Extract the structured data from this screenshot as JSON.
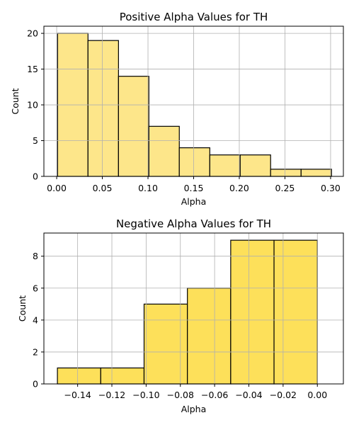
{
  "chart_data": [
    {
      "type": "bar",
      "title": "Positive Alpha Values for TH",
      "xlabel": "Alpha",
      "ylabel": "Count",
      "bar_color": "#fde68a",
      "edge_color": "#000000",
      "grid": true,
      "xlim": [
        -0.014,
        0.314
      ],
      "ylim": [
        0,
        21
      ],
      "xticks": [
        0.0,
        0.05,
        0.1,
        0.15,
        0.2,
        0.25,
        0.3
      ],
      "xtick_labels": [
        "0.00",
        "0.05",
        "0.10",
        "0.15",
        "0.20",
        "0.25",
        "0.30"
      ],
      "yticks": [
        0,
        5,
        10,
        15,
        20
      ],
      "ytick_labels": [
        "0",
        "5",
        "10",
        "15",
        "20"
      ],
      "bins": [
        {
          "x0": 0.001,
          "x1": 0.0343,
          "count": 20
        },
        {
          "x0": 0.0343,
          "x1": 0.0677,
          "count": 19
        },
        {
          "x0": 0.0677,
          "x1": 0.101,
          "count": 14
        },
        {
          "x0": 0.101,
          "x1": 0.1343,
          "count": 7
        },
        {
          "x0": 0.1343,
          "x1": 0.1677,
          "count": 4
        },
        {
          "x0": 0.1677,
          "x1": 0.201,
          "count": 3
        },
        {
          "x0": 0.201,
          "x1": 0.2343,
          "count": 3
        },
        {
          "x0": 0.2343,
          "x1": 0.2677,
          "count": 1
        },
        {
          "x0": 0.2677,
          "x1": 0.301,
          "count": 1
        }
      ]
    },
    {
      "type": "bar",
      "title": "Negative Alpha Values for TH",
      "xlabel": "Alpha",
      "ylabel": "Count",
      "bar_color": "#fde05a",
      "edge_color": "#000000",
      "grid": true,
      "xlim": [
        -0.1597,
        0.0152
      ],
      "ylim": [
        0,
        9.45
      ],
      "xticks": [
        -0.14,
        -0.12,
        -0.1,
        -0.08,
        -0.06,
        -0.04,
        -0.02,
        0.0
      ],
      "xtick_labels": [
        "−0.14",
        "−0.12",
        "−0.10",
        "−0.08",
        "−0.06",
        "−0.04",
        "−0.02",
        "0.00"
      ],
      "yticks": [
        0,
        2,
        4,
        6,
        8
      ],
      "ytick_labels": [
        "0",
        "2",
        "4",
        "6",
        "8"
      ],
      "bins": [
        {
          "x0": -0.1518,
          "x1": -0.1265,
          "count": 1
        },
        {
          "x0": -0.1265,
          "x1": -0.1012,
          "count": 1
        },
        {
          "x0": -0.1012,
          "x1": -0.0759,
          "count": 5
        },
        {
          "x0": -0.0759,
          "x1": -0.0506,
          "count": 6
        },
        {
          "x0": -0.0506,
          "x1": -0.0253,
          "count": 9
        },
        {
          "x0": -0.0253,
          "x1": 0.0,
          "count": 9
        }
      ]
    }
  ]
}
